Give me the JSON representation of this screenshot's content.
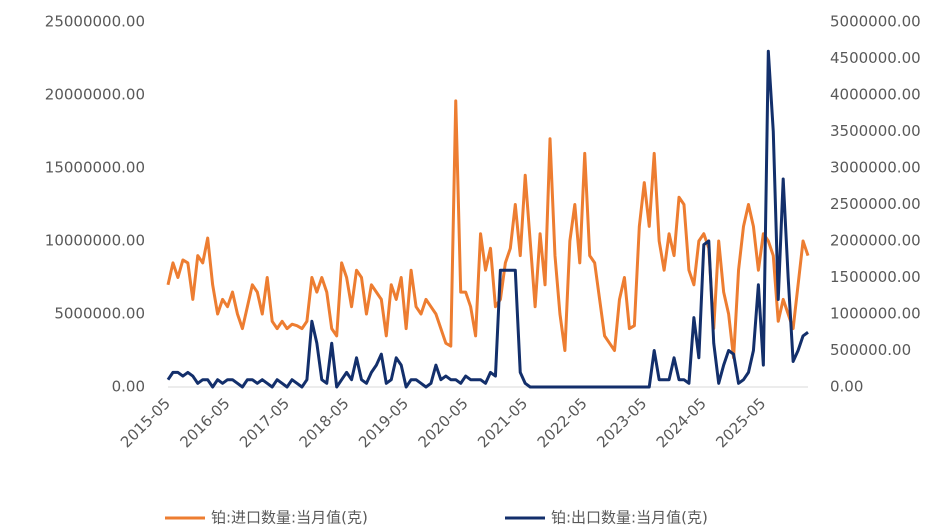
{
  "chart_data": {
    "type": "line",
    "categories": [
      "2015-05",
      null,
      null,
      null,
      null,
      null,
      null,
      null,
      null,
      null,
      null,
      null,
      "2016-05",
      null,
      null,
      null,
      null,
      null,
      null,
      null,
      null,
      null,
      null,
      null,
      "2017-05",
      null,
      null,
      null,
      null,
      null,
      null,
      null,
      null,
      null,
      null,
      null,
      "2018-05",
      null,
      null,
      null,
      null,
      null,
      null,
      null,
      null,
      null,
      null,
      null,
      "2019-05",
      null,
      null,
      null,
      null,
      null,
      null,
      null,
      null,
      null,
      null,
      null,
      "2020-05",
      null,
      null,
      null,
      null,
      null,
      null,
      null,
      null,
      null,
      null,
      null,
      "2021-05",
      null,
      null,
      null,
      null,
      null,
      null,
      null,
      null,
      null,
      null,
      null,
      "2022-05",
      null,
      null,
      null,
      null,
      null,
      null,
      null,
      null,
      null,
      null,
      null,
      "2023-05",
      null,
      null,
      null,
      null,
      null,
      null,
      null,
      null,
      null,
      null,
      null,
      "2024-05",
      null,
      null,
      null,
      null,
      null,
      null,
      null,
      null,
      null,
      null,
      null,
      "2025-05",
      null,
      null,
      null,
      null,
      null,
      null,
      null,
      null,
      null
    ],
    "series": [
      {
        "name": "铂:进口数量:当月值(克)",
        "color": "#ED7D31",
        "values": [
          7000000,
          8500000,
          7500000,
          8700000,
          8500000,
          6000000,
          9000000,
          8500000,
          10200000,
          7000000,
          5000000,
          6000000,
          5500000,
          6500000,
          5000000,
          4000000,
          5500000,
          7000000,
          6500000,
          5000000,
          7500000,
          4500000,
          4000000,
          4500000,
          4000000,
          4300000,
          4200000,
          4000000,
          4500000,
          7500000,
          6500000,
          7500000,
          6500000,
          4000000,
          3500000,
          8500000,
          7500000,
          5500000,
          8000000,
          7500000,
          5000000,
          7000000,
          6500000,
          6000000,
          3500000,
          7000000,
          6000000,
          7500000,
          4000000,
          8000000,
          5500000,
          5000000,
          6000000,
          5500000,
          5000000,
          4000000,
          3000000,
          2800000,
          19600000,
          6500000,
          6500000,
          5500000,
          3500000,
          10500000,
          8000000,
          9500000,
          5500000,
          6000000,
          8500000,
          9500000,
          12500000,
          9000000,
          14500000,
          10000000,
          5500000,
          10500000,
          7000000,
          17000000,
          9000000,
          5000000,
          2500000,
          10000000,
          12500000,
          8500000,
          16000000,
          9000000,
          8500000,
          6000000,
          3500000,
          3000000,
          2500000,
          6000000,
          7500000,
          4000000,
          4200000,
          11000000,
          14000000,
          11000000,
          16000000,
          10000000,
          8000000,
          10500000,
          9000000,
          13000000,
          12500000,
          8000000,
          7000000,
          10000000,
          10500000,
          9500000,
          4000000,
          10000000,
          6500000,
          5000000,
          2000000,
          8000000,
          11000000,
          12500000,
          11000000,
          8000000,
          10500000,
          10000000,
          9000000,
          4500000,
          6000000,
          5000000,
          4000000,
          7000000,
          10000000,
          9000000
        ]
      },
      {
        "name": "铂:出口数量:当月值(克)",
        "color": "#132F6B",
        "axis": "y2",
        "values": [
          100000,
          200000,
          200000,
          150000,
          200000,
          150000,
          50000,
          100000,
          100000,
          0,
          100000,
          50000,
          100000,
          100000,
          50000,
          0,
          100000,
          100000,
          50000,
          100000,
          50000,
          0,
          100000,
          50000,
          0,
          100000,
          50000,
          0,
          100000,
          900000,
          600000,
          100000,
          50000,
          600000,
          0,
          100000,
          200000,
          100000,
          400000,
          100000,
          50000,
          200000,
          300000,
          450000,
          50000,
          100000,
          400000,
          300000,
          0,
          100000,
          100000,
          50000,
          0,
          50000,
          300000,
          100000,
          150000,
          100000,
          100000,
          50000,
          150000,
          100000,
          100000,
          100000,
          50000,
          200000,
          150000,
          1600000,
          1600000,
          1600000,
          1600000,
          200000,
          50000,
          0,
          0,
          0,
          0,
          0,
          0,
          0,
          0,
          0,
          0,
          0,
          0,
          0,
          0,
          0,
          0,
          0,
          0,
          0,
          0,
          0,
          0,
          0,
          0,
          0,
          500000,
          100000,
          100000,
          100000,
          400000,
          100000,
          100000,
          50000,
          950000,
          400000,
          1950000,
          2000000,
          600000,
          50000,
          300000,
          500000,
          450000,
          50000,
          100000,
          200000,
          500000,
          1400000,
          300000,
          4600000,
          3500000,
          1200000,
          2850000,
          1500000,
          350000,
          500000,
          700000,
          750000
        ]
      }
    ],
    "ylim": [
      0,
      25000000
    ],
    "yticks": [
      {
        "value": 0,
        "label": "0.00"
      },
      {
        "value": 5000000,
        "label": "5000000.00"
      },
      {
        "value": 10000000,
        "label": "10000000.00"
      },
      {
        "value": 15000000,
        "label": "15000000.00"
      },
      {
        "value": 20000000,
        "label": "20000000.00"
      },
      {
        "value": 25000000,
        "label": "25000000.00"
      }
    ],
    "y2lim": [
      0,
      5000000
    ],
    "y2ticks": [
      {
        "value": 0,
        "label": "0.00"
      },
      {
        "value": 500000,
        "label": "500000.00"
      },
      {
        "value": 1000000,
        "label": "1000000.00"
      },
      {
        "value": 1500000,
        "label": "1500000.00"
      },
      {
        "value": 2000000,
        "label": "2000000.00"
      },
      {
        "value": 2500000,
        "label": "2500000.00"
      },
      {
        "value": 3000000,
        "label": "3000000.00"
      },
      {
        "value": 3500000,
        "label": "3500000.00"
      },
      {
        "value": 4000000,
        "label": "4000000.00"
      },
      {
        "value": 4500000,
        "label": "4500000.00"
      },
      {
        "value": 5000000,
        "label": "5000000.00"
      }
    ]
  }
}
